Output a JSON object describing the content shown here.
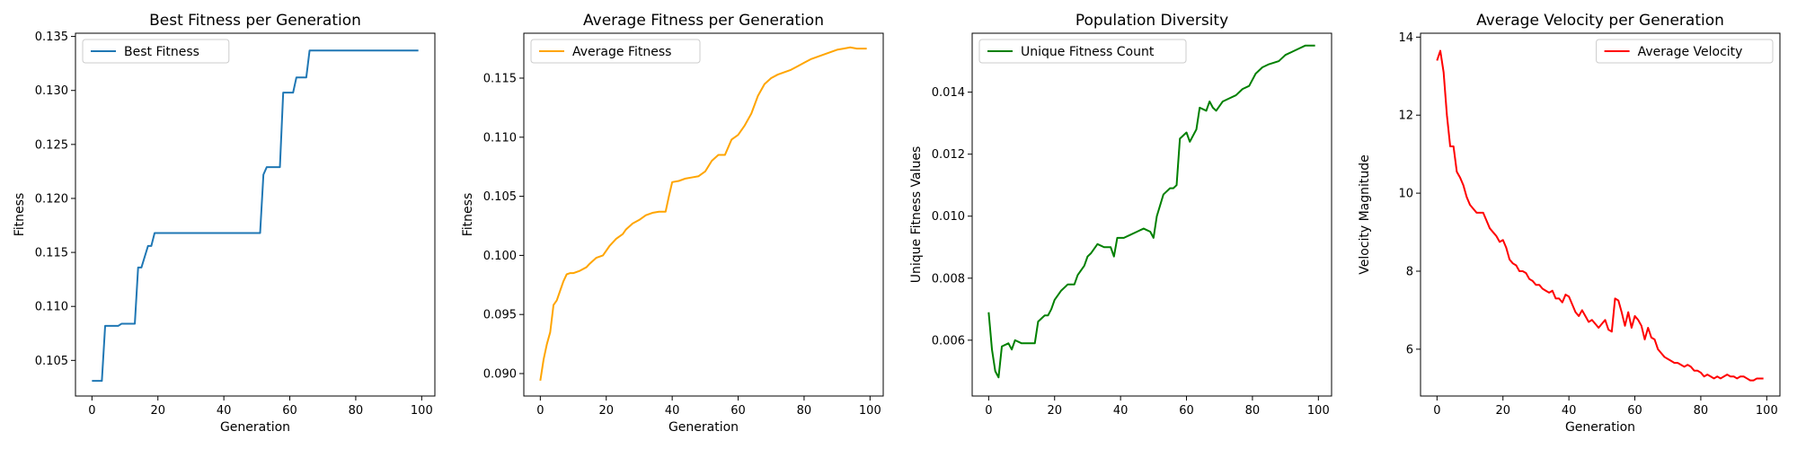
{
  "chart_data": [
    {
      "type": "line",
      "title": "Best Fitness per Generation",
      "xlabel": "Generation",
      "ylabel": "Fitness",
      "xlim": [
        -5,
        104
      ],
      "ylim": [
        0.1017,
        0.1353
      ],
      "xticks": [
        0,
        20,
        40,
        60,
        80,
        100
      ],
      "yticks": [
        0.105,
        0.11,
        0.115,
        0.12,
        0.125,
        0.13,
        0.135
      ],
      "ytick_labels": [
        "0.105",
        "0.110",
        "0.115",
        "0.120",
        "0.125",
        "0.130",
        "0.135"
      ],
      "legend_position": "top-left",
      "grid": false,
      "series": [
        {
          "name": "Best Fitness",
          "color": "#1f77b4",
          "x": [
            0,
            3,
            4,
            8,
            9,
            13,
            14,
            15,
            17,
            18,
            19,
            43,
            44,
            51,
            52,
            53,
            57,
            58,
            61,
            62,
            65,
            66,
            99
          ],
          "y": [
            0.1031,
            0.1031,
            0.1082,
            0.1082,
            0.1084,
            0.1084,
            0.1136,
            0.1136,
            0.1156,
            0.1156,
            0.1168,
            0.1168,
            0.1168,
            0.1168,
            0.1222,
            0.1229,
            0.1229,
            0.1298,
            0.1298,
            0.1312,
            0.1312,
            0.1337,
            0.1337
          ]
        }
      ]
    },
    {
      "type": "line",
      "title": "Average Fitness per Generation",
      "xlabel": "Generation",
      "ylabel": "Fitness",
      "xlim": [
        -5,
        104
      ],
      "ylim": [
        0.0881,
        0.1188
      ],
      "xticks": [
        0,
        20,
        40,
        60,
        80,
        100
      ],
      "yticks": [
        0.09,
        0.095,
        0.1,
        0.105,
        0.11,
        0.115
      ],
      "ytick_labels": [
        "0.090",
        "0.095",
        "0.100",
        "0.105",
        "0.110",
        "0.115"
      ],
      "legend_position": "top-left",
      "grid": false,
      "series": [
        {
          "name": "Average Fitness",
          "color": "#ffa500",
          "x": [
            0,
            1,
            2,
            3,
            4,
            5,
            6,
            7,
            8,
            9,
            10,
            12,
            14,
            15,
            17,
            19,
            21,
            23,
            25,
            26,
            28,
            30,
            32,
            34,
            36,
            38,
            39,
            40,
            42,
            44,
            46,
            48,
            50,
            52,
            54,
            56,
            58,
            60,
            62,
            64,
            66,
            68,
            70,
            72,
            74,
            76,
            78,
            80,
            82,
            84,
            86,
            88,
            90,
            92,
            94,
            96,
            99
          ],
          "y": [
            0.0894,
            0.0912,
            0.0925,
            0.0935,
            0.0958,
            0.0962,
            0.097,
            0.0978,
            0.0984,
            0.0985,
            0.0985,
            0.0987,
            0.099,
            0.0993,
            0.0998,
            0.1,
            0.1008,
            0.1014,
            0.1018,
            0.1022,
            0.1027,
            0.103,
            0.1034,
            0.1036,
            0.1037,
            0.1037,
            0.105,
            0.1062,
            0.1063,
            0.1065,
            0.1066,
            0.1067,
            0.1071,
            0.108,
            0.1085,
            0.1085,
            0.1098,
            0.1102,
            0.111,
            0.112,
            0.1135,
            0.1145,
            0.115,
            0.1153,
            0.1155,
            0.1157,
            0.116,
            0.1163,
            0.1166,
            0.1168,
            0.117,
            0.1172,
            0.1174,
            0.1175,
            0.1176,
            0.1175,
            0.1175
          ]
        }
      ]
    },
    {
      "type": "line",
      "title": "Population Diversity",
      "xlabel": "",
      "ylabel": "Unique Fitness Values",
      "xlim": [
        -5,
        104
      ],
      "ylim": [
        0.0042,
        0.0159
      ],
      "xticks": [
        0,
        20,
        40,
        60,
        80,
        100
      ],
      "yticks": [
        0.006,
        0.008,
        0.01,
        0.012,
        0.014
      ],
      "ytick_labels": [
        "0.006",
        "0.008",
        "0.010",
        "0.012",
        "0.014"
      ],
      "legend_position": "top-left",
      "grid": false,
      "series": [
        {
          "name": "Unique Fitness Count",
          "color": "#008000",
          "x": [
            0,
            1,
            2,
            3,
            4,
            6,
            7,
            8,
            10,
            12,
            14,
            15,
            17,
            18,
            19,
            20,
            22,
            24,
            26,
            27,
            29,
            30,
            31,
            33,
            35,
            37,
            38,
            39,
            41,
            43,
            45,
            47,
            49,
            50,
            51,
            53,
            55,
            56,
            57,
            58,
            60,
            61,
            63,
            64,
            66,
            67,
            68,
            69,
            71,
            73,
            75,
            77,
            79,
            81,
            83,
            85,
            88,
            90,
            92,
            94,
            96,
            99
          ],
          "y": [
            0.0069,
            0.0057,
            0.005,
            0.0048,
            0.0058,
            0.0059,
            0.0057,
            0.006,
            0.0059,
            0.0059,
            0.0059,
            0.0066,
            0.0068,
            0.0068,
            0.007,
            0.0073,
            0.0076,
            0.0078,
            0.0078,
            0.0081,
            0.0084,
            0.0087,
            0.0088,
            0.0091,
            0.009,
            0.009,
            0.0087,
            0.0093,
            0.0093,
            0.0094,
            0.0095,
            0.0096,
            0.0095,
            0.0093,
            0.01,
            0.0107,
            0.0109,
            0.0109,
            0.011,
            0.0125,
            0.0127,
            0.0124,
            0.0128,
            0.0135,
            0.0134,
            0.0137,
            0.0135,
            0.0134,
            0.0137,
            0.0138,
            0.0139,
            0.0141,
            0.0142,
            0.0146,
            0.0148,
            0.0149,
            0.015,
            0.0152,
            0.0153,
            0.0154,
            0.0155,
            0.0155
          ]
        }
      ]
    },
    {
      "type": "line",
      "title": "Average Velocity per Generation",
      "xlabel": "Generation",
      "ylabel": "Velocity Magnitude",
      "xlim": [
        -5,
        104
      ],
      "ylim": [
        4.8,
        14.1
      ],
      "xticks": [
        0,
        20,
        40,
        60,
        80,
        100
      ],
      "yticks": [
        6,
        8,
        10,
        12,
        14
      ],
      "ytick_labels": [
        "6",
        "8",
        "10",
        "12",
        "14"
      ],
      "legend_position": "top-right",
      "grid": false,
      "series": [
        {
          "name": "Average Velocity",
          "color": "#ff0000",
          "x": [
            0,
            1,
            2,
            3,
            4,
            5,
            6,
            7,
            8,
            9,
            10,
            11,
            12,
            13,
            14,
            15,
            16,
            17,
            18,
            19,
            20,
            21,
            22,
            23,
            24,
            25,
            26,
            27,
            28,
            29,
            30,
            31,
            32,
            33,
            34,
            35,
            36,
            37,
            38,
            39,
            40,
            41,
            42,
            43,
            44,
            45,
            46,
            47,
            48,
            49,
            50,
            51,
            52,
            53,
            54,
            55,
            56,
            57,
            58,
            59,
            60,
            61,
            62,
            63,
            64,
            65,
            66,
            67,
            68,
            69,
            70,
            71,
            72,
            73,
            74,
            75,
            76,
            77,
            78,
            79,
            80,
            81,
            82,
            83,
            84,
            85,
            86,
            87,
            88,
            89,
            90,
            91,
            92,
            93,
            94,
            95,
            96,
            97,
            98,
            99
          ],
          "y": [
            13.4,
            13.65,
            13.1,
            12.0,
            11.2,
            11.2,
            10.55,
            10.4,
            10.2,
            9.9,
            9.7,
            9.6,
            9.5,
            9.5,
            9.5,
            9.3,
            9.1,
            9.0,
            8.9,
            8.75,
            8.8,
            8.6,
            8.3,
            8.2,
            8.15,
            8.0,
            8.0,
            7.95,
            7.8,
            7.75,
            7.65,
            7.65,
            7.55,
            7.5,
            7.45,
            7.5,
            7.3,
            7.3,
            7.2,
            7.4,
            7.35,
            7.15,
            6.95,
            6.85,
            7.0,
            6.85,
            6.7,
            6.75,
            6.65,
            6.55,
            6.65,
            6.75,
            6.5,
            6.45,
            7.3,
            7.25,
            6.95,
            6.6,
            6.95,
            6.55,
            6.85,
            6.75,
            6.6,
            6.25,
            6.55,
            6.3,
            6.25,
            6.0,
            5.9,
            5.8,
            5.75,
            5.7,
            5.65,
            5.65,
            5.6,
            5.55,
            5.6,
            5.55,
            5.45,
            5.45,
            5.4,
            5.3,
            5.35,
            5.3,
            5.25,
            5.3,
            5.25,
            5.3,
            5.35,
            5.3,
            5.3,
            5.25,
            5.3,
            5.3,
            5.25,
            5.2,
            5.2,
            5.25,
            5.25,
            5.25
          ]
        }
      ]
    }
  ]
}
